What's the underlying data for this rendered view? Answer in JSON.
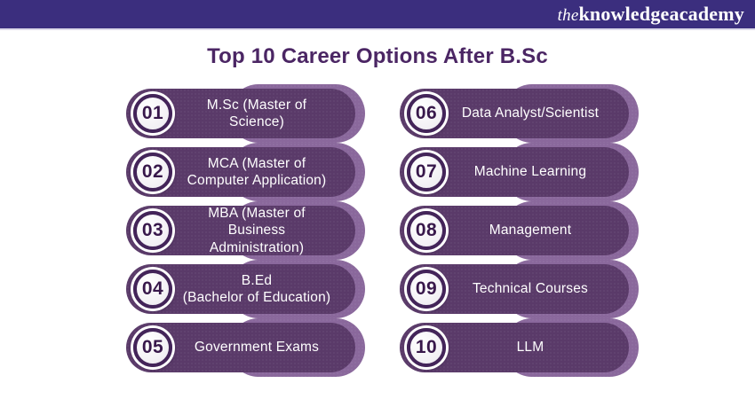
{
  "header": {
    "logo": {
      "the": "the",
      "knowledge": "knowledge",
      "academy": "academy"
    }
  },
  "title": "Top 10 Career Options After B.Sc",
  "colors": {
    "header_bar": "#3b2e7e",
    "title_text": "#4b2664",
    "pill_dark": "#5a3a69",
    "pill_light": "#8a689c",
    "badge_ring": "#432459",
    "badge_number": "#38184b",
    "pill_text": "#ffffff"
  },
  "items": [
    {
      "number": "01",
      "label": "M.Sc (Master of Science)"
    },
    {
      "number": "02",
      "label": "MCA (Master of\nComputer Application)"
    },
    {
      "number": "03",
      "label": "MBA (Master of Business\nAdministration)"
    },
    {
      "number": "04",
      "label": "B.Ed\n(Bachelor of Education)"
    },
    {
      "number": "05",
      "label": "Government Exams"
    },
    {
      "number": "06",
      "label": "Data Analyst/Scientist"
    },
    {
      "number": "07",
      "label": "Machine Learning"
    },
    {
      "number": "08",
      "label": "Management"
    },
    {
      "number": "09",
      "label": "Technical Courses"
    },
    {
      "number": "10",
      "label": "LLM"
    }
  ]
}
